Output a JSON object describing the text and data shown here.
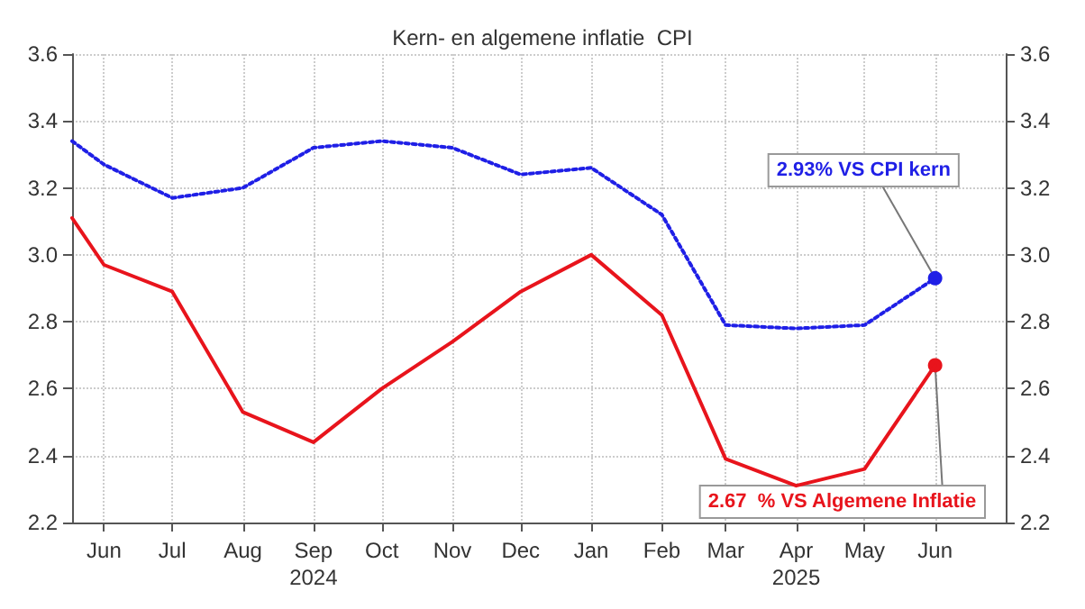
{
  "chart_data": {
    "type": "line",
    "title": "Kern- en algemene inflatie  CPI",
    "x": [
      "2024-06-01",
      "2024-06-15",
      "2024-07-15",
      "2024-08-15",
      "2024-09-15",
      "2024-10-15",
      "2024-11-15",
      "2024-12-15",
      "2025-01-15",
      "2025-02-15",
      "2025-03-15",
      "2025-04-15",
      "2025-05-15",
      "2025-06-15"
    ],
    "series": [
      {
        "color": "#1f1fe6",
        "line_style": "dotted",
        "values": [
          3.34,
          3.27,
          3.17,
          3.2,
          3.32,
          3.34,
          3.32,
          3.24,
          3.26,
          3.12,
          2.79,
          2.78,
          2.79,
          2.93
        ]
      },
      {
        "color": "#e8141c",
        "line_style": "solid",
        "values": [
          3.11,
          2.97,
          2.89,
          2.53,
          2.44,
          2.6,
          2.74,
          2.89,
          3.0,
          2.82,
          2.39,
          2.31,
          2.36,
          2.67
        ]
      }
    ],
    "xlim": [
      "2024-06-01",
      "2025-07-16"
    ],
    "xticks": [
      {
        "value": "2024-06-15",
        "label": "Jun"
      },
      {
        "value": "2024-07-15",
        "label": "Jul"
      },
      {
        "value": "2024-08-15",
        "label": "Aug"
      },
      {
        "value": "2024-09-15",
        "label": "Sep\n2024"
      },
      {
        "value": "2024-10-15",
        "label": "Oct"
      },
      {
        "value": "2024-11-15",
        "label": "Nov"
      },
      {
        "value": "2024-12-15",
        "label": "Dec"
      },
      {
        "value": "2025-01-15",
        "label": "Jan"
      },
      {
        "value": "2025-02-15",
        "label": "Feb"
      },
      {
        "value": "2025-03-15",
        "label": "Mar"
      },
      {
        "value": "2025-04-15",
        "label": "Apr\n2025"
      },
      {
        "value": "2025-05-15",
        "label": "May"
      },
      {
        "value": "2025-06-15",
        "label": "Jun"
      }
    ],
    "ylim": [
      2.2,
      3.6
    ],
    "yticks": [
      2.2,
      2.4,
      2.6,
      2.8,
      {
        "value": 3,
        "label": "3.0"
      },
      3.2,
      3.4,
      3.6
    ],
    "y2lim": [
      2.2,
      3.6
    ],
    "y2ticks": [
      2.2,
      2.4,
      2.6,
      2.8,
      {
        "value": 3,
        "label": "3.0"
      },
      3.2,
      3.4,
      3.6
    ],
    "grid": true,
    "marker": "none",
    "annotations": [
      {
        "text": "2.93% VS CPI kern",
        "x": "2025-06-15",
        "y": 2.93
      },
      {
        "text": "2.67  % VS Algemene Inflatie",
        "x": "2025-06-15",
        "y": 2.67
      }
    ]
  }
}
